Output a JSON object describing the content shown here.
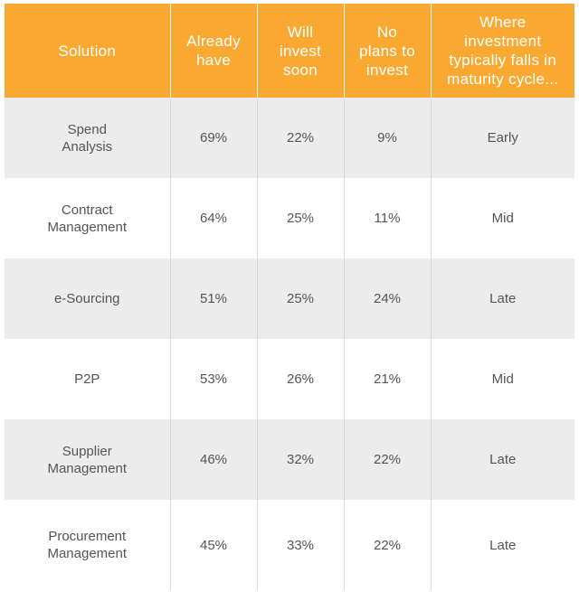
{
  "chart_data": {
    "type": "table",
    "columns": [
      [
        "Solution"
      ],
      [
        "Already",
        "have"
      ],
      [
        "Will",
        "invest",
        "soon"
      ],
      [
        "No",
        "plans to",
        "invest"
      ],
      [
        "Where",
        "investment",
        "typically falls in",
        "maturity cycle..."
      ]
    ],
    "rows": [
      {
        "solution": [
          "Spend",
          "Analysis"
        ],
        "already_have": "69%",
        "will_invest_soon": "22%",
        "no_plans": "9%",
        "maturity": "Early"
      },
      {
        "solution": [
          "Contract",
          "Management"
        ],
        "already_have": "64%",
        "will_invest_soon": "25%",
        "no_plans": "11%",
        "maturity": "Mid"
      },
      {
        "solution": [
          "e-Sourcing"
        ],
        "already_have": "51%",
        "will_invest_soon": "25%",
        "no_plans": "24%",
        "maturity": "Late"
      },
      {
        "solution": [
          "P2P"
        ],
        "already_have": "53%",
        "will_invest_soon": "26%",
        "no_plans": "21%",
        "maturity": "Mid"
      },
      {
        "solution": [
          "Supplier",
          "Management"
        ],
        "already_have": "46%",
        "will_invest_soon": "32%",
        "no_plans": "22%",
        "maturity": "Late"
      },
      {
        "solution": [
          "Procurement",
          "Management"
        ],
        "already_have": "45%",
        "will_invest_soon": "33%",
        "no_plans": "22%",
        "maturity": "Late"
      }
    ]
  },
  "colors": {
    "header_bg": "#f9a931",
    "header_text": "#ffffff",
    "row_shaded": "#ececec",
    "row_plain": "#ffffff",
    "cell_text": "#555555"
  }
}
